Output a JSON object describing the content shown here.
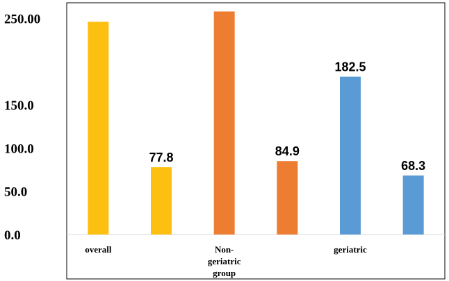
{
  "chart_data": {
    "type": "bar",
    "ylim": [
      0,
      260
    ],
    "y_ticks": [
      {
        "value": 0,
        "label": "0.0"
      },
      {
        "value": 50,
        "label": "50.0"
      },
      {
        "value": 100,
        "label": "100.0"
      },
      {
        "value": 150,
        "label": "150.0"
      },
      {
        "value": 250,
        "label": "250.00"
      }
    ],
    "groups": [
      {
        "label": [
          "overall"
        ],
        "color": "#FDC010"
      },
      {
        "label": [
          "Non-",
          "geriatric",
          "group"
        ],
        "color": "#ED7D31"
      },
      {
        "label": [
          "geriatric"
        ],
        "color": "#5B9BD5"
      }
    ],
    "bars": [
      {
        "group": 0,
        "value": 246,
        "label": ""
      },
      {
        "group": 0,
        "value": 77.8,
        "label": "77.8"
      },
      {
        "group": 1,
        "value": 258,
        "label": ""
      },
      {
        "group": 1,
        "value": 84.9,
        "label": "84.9"
      },
      {
        "group": 2,
        "value": 182.5,
        "label": "182.5"
      },
      {
        "group": 2,
        "value": 68.3,
        "label": "68.3"
      }
    ],
    "grid": false,
    "legend": "none"
  }
}
